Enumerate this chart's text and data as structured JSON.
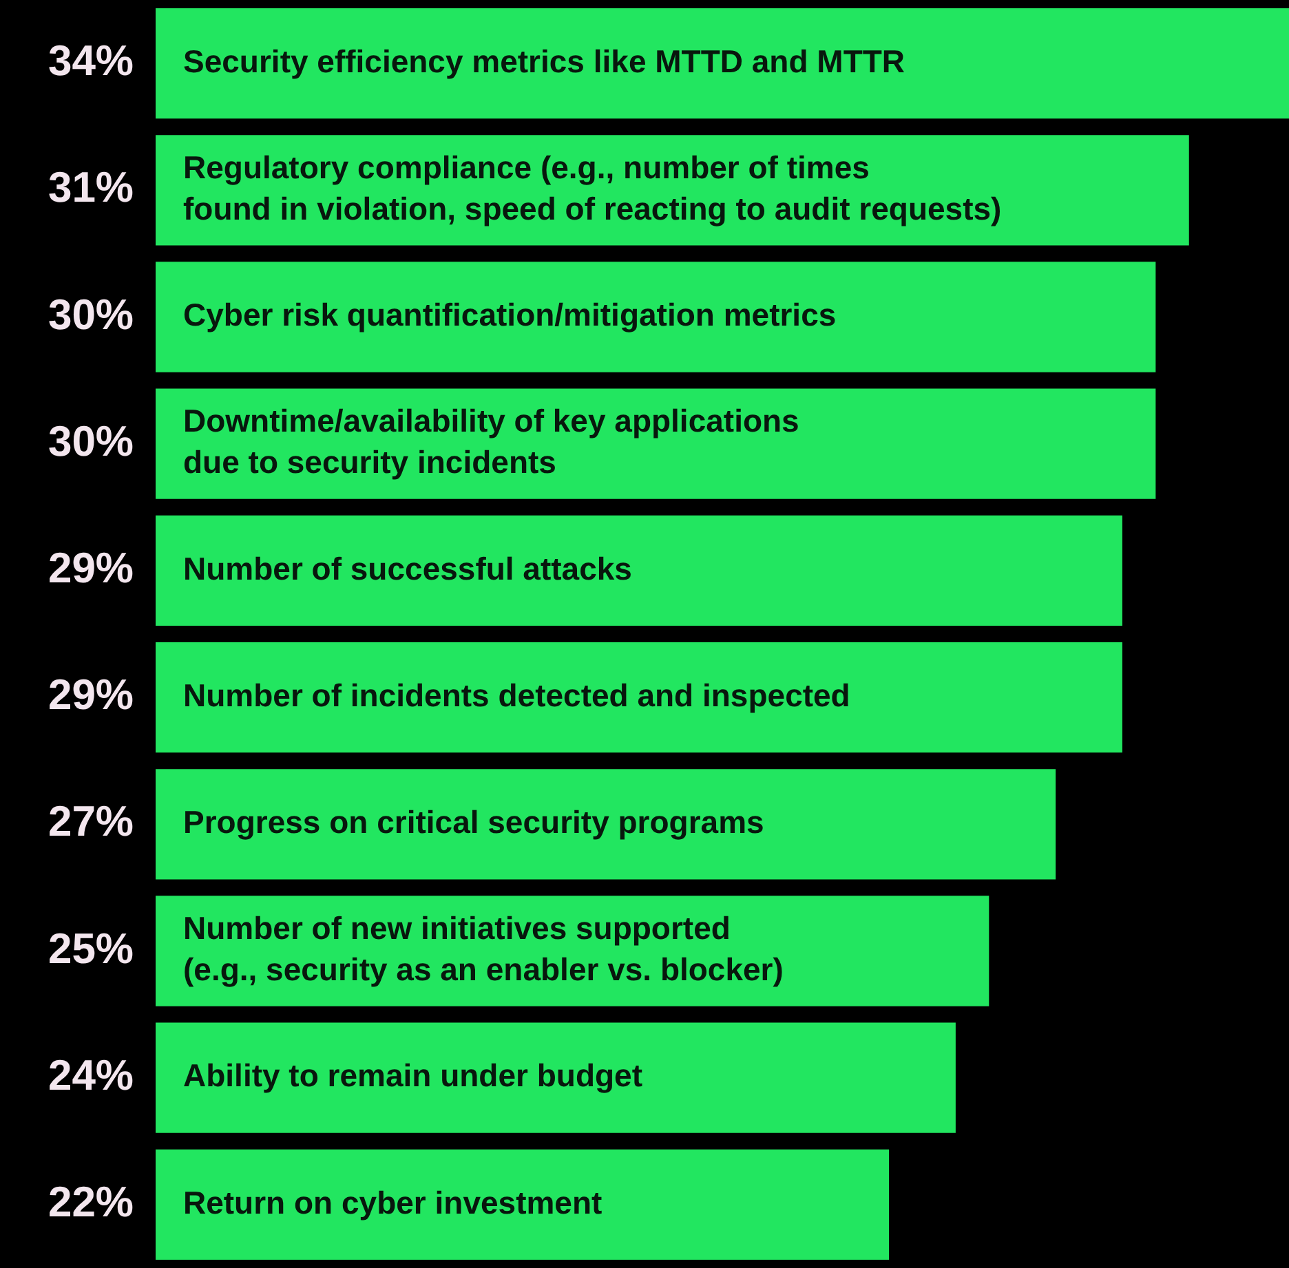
{
  "chart_data": {
    "type": "bar",
    "orientation": "horizontal",
    "categories": [
      "Security efficiency metrics like MTTD and MTTR",
      "Regulatory compliance (e.g., number of times\nfound in violation, speed of reacting to audit requests)",
      "Cyber risk quantification/mitigation metrics",
      "Downtime/availability of key applications\ndue to security incidents",
      "Number of successful attacks",
      "Number of incidents detected and inspected",
      "Progress on critical security programs",
      "Number of new initiatives supported\n(e.g., security as an enabler vs. blocker)",
      "Ability to remain under budget",
      "Return on cyber investment"
    ],
    "values": [
      34,
      31,
      30,
      30,
      29,
      29,
      27,
      25,
      24,
      22
    ],
    "value_labels": [
      "34%",
      "31%",
      "30%",
      "30%",
      "29%",
      "29%",
      "27%",
      "25%",
      "24%",
      "22%"
    ],
    "color": "#22e660",
    "xlim": [
      0,
      34
    ]
  }
}
